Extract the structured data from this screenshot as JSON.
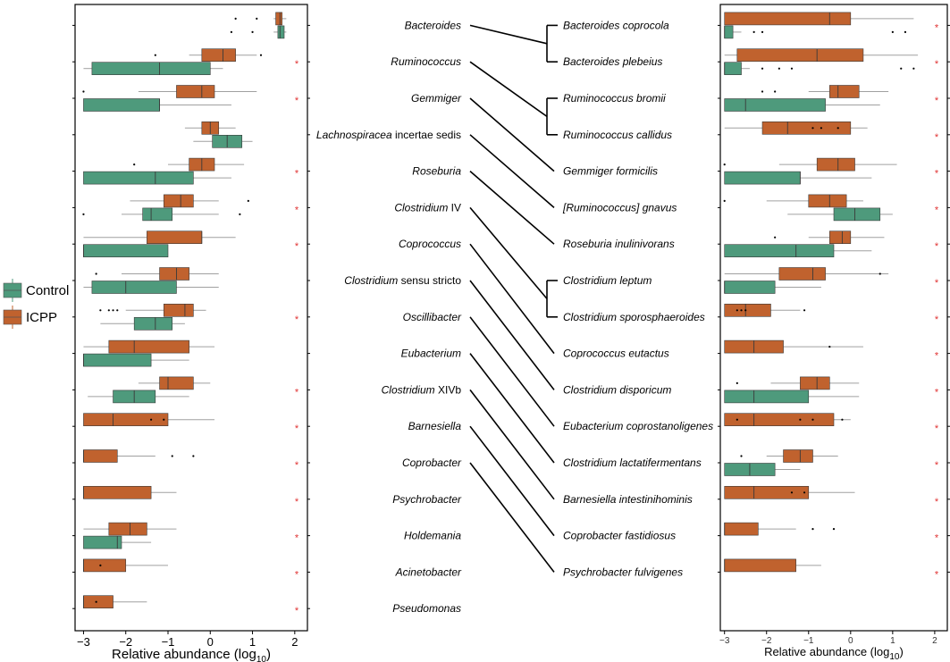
{
  "colors": {
    "control": "#4e9a7c",
    "icpp": "#c0622e",
    "star": "#e03030",
    "whisker": "#a0a0a0"
  },
  "legend": {
    "control_label": "Control",
    "icpp_label": "ICPP"
  },
  "chart_data": [
    {
      "type": "boxplot",
      "panel": "genus",
      "xlabel": "Relative abundance (log10)",
      "xlabel_main": "Relative abundance (log",
      "xlabel_sub": "10",
      "xlabel_close": ")",
      "xlim": [
        -3.2,
        2.3
      ],
      "xticks": [
        "-3",
        "-2",
        "-1",
        "0",
        "1",
        "2"
      ],
      "xtick_values": [
        -3,
        -2,
        -1,
        0,
        1,
        2
      ],
      "categories": [
        {
          "label": "Bacteroides",
          "italic": "Bacteroides",
          "rest": "",
          "sig": false,
          "icpp": {
            "wl": 1.5,
            "q1": 1.55,
            "med": 1.65,
            "q3": 1.7,
            "wh": 1.8,
            "out": [
              0.6,
              1.1
            ]
          },
          "control": {
            "wl": 1.5,
            "q1": 1.6,
            "med": 1.65,
            "q3": 1.75,
            "wh": 1.8,
            "out": [
              0.5,
              1.0
            ]
          }
        },
        {
          "label": "Ruminococcus",
          "italic": "Ruminococcus",
          "rest": "",
          "sig": true,
          "icpp": {
            "wl": -0.5,
            "q1": -0.2,
            "med": 0.3,
            "q3": 0.6,
            "wh": 1.1,
            "out": [
              -1.3,
              1.2
            ]
          },
          "control": {
            "wl": -3.0,
            "q1": -2.8,
            "med": -1.2,
            "q3": 0.0,
            "wh": 0.3,
            "out": []
          }
        },
        {
          "label": "Gemmiger",
          "italic": "Gemmiger",
          "rest": "",
          "sig": true,
          "icpp": {
            "wl": -1.7,
            "q1": -0.8,
            "med": -0.2,
            "q3": 0.1,
            "wh": 1.1,
            "out": [
              -3.0
            ]
          },
          "control": {
            "wl": -3.0,
            "q1": -3.0,
            "med": -1.2,
            "q3": -1.2,
            "wh": 0.5,
            "out": []
          }
        },
        {
          "label": "Lachnospiracea incertae sedis",
          "italic": "Lachnospiracea",
          "rest": " incertae sedis",
          "sig": false,
          "icpp": {
            "wl": -0.6,
            "q1": -0.2,
            "med": 0.0,
            "q3": 0.2,
            "wh": 0.6,
            "out": []
          },
          "control": {
            "wl": -0.4,
            "q1": 0.05,
            "med": 0.4,
            "q3": 0.75,
            "wh": 1.0,
            "out": []
          }
        },
        {
          "label": "Roseburia",
          "italic": "Roseburia",
          "rest": "",
          "sig": true,
          "icpp": {
            "wl": -1.0,
            "q1": -0.5,
            "med": -0.2,
            "q3": 0.1,
            "wh": 0.8,
            "out": [
              -1.8
            ]
          },
          "control": {
            "wl": -3.0,
            "q1": -3.0,
            "med": -1.3,
            "q3": -0.4,
            "wh": 0.5,
            "out": []
          }
        },
        {
          "label": "Clostridium IV",
          "italic": "Clostridium",
          "rest": " IV",
          "sig": true,
          "icpp": {
            "wl": -1.9,
            "q1": -1.1,
            "med": -0.7,
            "q3": -0.4,
            "wh": 0.2,
            "out": [
              0.9
            ]
          },
          "control": {
            "wl": -2.1,
            "q1": -1.6,
            "med": -1.4,
            "q3": -0.9,
            "wh": 0.2,
            "out": [
              -3.0,
              0.7
            ]
          }
        },
        {
          "label": "Coprococcus",
          "italic": "Coprococcus",
          "rest": "",
          "sig": true,
          "icpp": {
            "wl": -3.0,
            "q1": -1.5,
            "med": -0.2,
            "q3": -0.2,
            "wh": 0.6,
            "out": []
          },
          "control": {
            "wl": -3.0,
            "q1": -3.0,
            "med": -3.0,
            "q3": -1.0,
            "wh": -1.0,
            "out": []
          }
        },
        {
          "label": "Clostridium sensu stricto",
          "italic": "Clostridium",
          "rest": " sensu stricto",
          "sig": false,
          "icpp": {
            "wl": -2.1,
            "q1": -1.2,
            "med": -0.8,
            "q3": -0.5,
            "wh": 0.2,
            "out": [
              -2.7
            ]
          },
          "control": {
            "wl": -3.0,
            "q1": -2.8,
            "med": -2.0,
            "q3": -0.8,
            "wh": 0.2,
            "out": []
          }
        },
        {
          "label": "Oscillibacter",
          "italic": "Oscillibacter",
          "rest": "",
          "sig": true,
          "icpp": {
            "wl": -2.0,
            "q1": -1.1,
            "med": -0.6,
            "q3": -0.4,
            "wh": -0.1,
            "out": [
              -2.6,
              -2.4,
              -2.3,
              -2.2
            ]
          },
          "control": {
            "wl": -2.6,
            "q1": -1.8,
            "med": -1.3,
            "q3": -0.9,
            "wh": -0.6,
            "out": []
          }
        },
        {
          "label": "Eubacterium",
          "italic": "Eubacterium",
          "rest": "",
          "sig": false,
          "icpp": {
            "wl": -3.0,
            "q1": -2.4,
            "med": -1.8,
            "q3": -0.5,
            "wh": 0.1,
            "out": []
          },
          "control": {
            "wl": -3.0,
            "q1": -3.0,
            "med": -3.0,
            "q3": -1.4,
            "wh": -0.5,
            "out": []
          }
        },
        {
          "label": "Clostridium XIVb",
          "italic": "Clostridium",
          "rest": " XIVb",
          "sig": true,
          "icpp": {
            "wl": -1.7,
            "q1": -1.2,
            "med": -1.0,
            "q3": -0.4,
            "wh": 0.0,
            "out": []
          },
          "control": {
            "wl": -2.9,
            "q1": -2.3,
            "med": -1.8,
            "q3": -1.3,
            "wh": -0.5,
            "out": []
          }
        },
        {
          "label": "Barnesiella",
          "italic": "Barnesiella",
          "rest": "",
          "sig": true,
          "icpp": {
            "wl": -3.0,
            "q1": -3.0,
            "med": -2.3,
            "q3": -1.0,
            "wh": 0.1,
            "out": [
              -1.4,
              -1.1
            ]
          },
          "control": null
        },
        {
          "label": "Coprobacter",
          "italic": "Coprobacter",
          "rest": "",
          "sig": true,
          "icpp": {
            "wl": -3.0,
            "q1": -3.0,
            "med": -3.0,
            "q3": -2.2,
            "wh": -1.3,
            "out": [
              -0.9,
              -0.4
            ]
          },
          "control": null
        },
        {
          "label": "Psychrobacter",
          "italic": "Psychrobacter",
          "rest": "",
          "sig": true,
          "icpp": {
            "wl": -3.0,
            "q1": -3.0,
            "med": -3.0,
            "q3": -1.4,
            "wh": -0.8,
            "out": []
          },
          "control": null
        },
        {
          "label": "Holdemania",
          "italic": "Holdemania",
          "rest": "",
          "sig": true,
          "icpp": {
            "wl": -3.0,
            "q1": -2.4,
            "med": -1.9,
            "q3": -1.5,
            "wh": -0.8,
            "out": []
          },
          "control": {
            "wl": -3.0,
            "q1": -3.0,
            "med": -2.2,
            "q3": -2.1,
            "wh": -1.4,
            "out": []
          }
        },
        {
          "label": "Acinetobacter",
          "italic": "Acinetobacter",
          "rest": "",
          "sig": true,
          "icpp": {
            "wl": -3.0,
            "q1": -3.0,
            "med": -3.0,
            "q3": -2.0,
            "wh": -1.0,
            "out": [
              -2.6
            ]
          },
          "control": null
        },
        {
          "label": "Pseudomonas",
          "italic": "Pseudomonas",
          "rest": "",
          "sig": true,
          "icpp": {
            "wl": -3.0,
            "q1": -3.0,
            "med": -3.0,
            "q3": -2.3,
            "wh": -1.5,
            "out": [
              -2.7
            ]
          },
          "control": null
        }
      ]
    },
    {
      "type": "boxplot",
      "panel": "species",
      "xlabel": "Relative abundance (log10)",
      "xlabel_main": "Relative abundance (log",
      "xlabel_sub": "10",
      "xlabel_close": ")",
      "xlim": [
        -3.1,
        2.3
      ],
      "xticks": [
        "-3",
        "-2",
        "-1",
        "0",
        "1",
        "2"
      ],
      "xtick_values": [
        -3,
        -2,
        -1,
        0,
        1,
        2
      ],
      "categories": [
        {
          "label": "Bacteroides coprocola",
          "sig": true,
          "icpp": {
            "wl": -3.0,
            "q1": -3.0,
            "med": -0.5,
            "q3": 0.0,
            "wh": 1.5,
            "out": []
          },
          "control": {
            "wl": -3.0,
            "q1": -3.0,
            "med": -3.0,
            "q3": -2.8,
            "wh": -2.6,
            "out": [
              -2.3,
              -2.1,
              1.0,
              1.3
            ]
          }
        },
        {
          "label": "Bacteroides plebeius",
          "sig": true,
          "icpp": {
            "wl": -3.0,
            "q1": -2.7,
            "med": -0.8,
            "q3": 0.3,
            "wh": 1.6,
            "out": []
          },
          "control": {
            "wl": -3.0,
            "q1": -3.0,
            "med": -3.0,
            "q3": -2.6,
            "wh": -2.4,
            "out": [
              -2.1,
              -1.7,
              -1.4,
              1.2,
              1.5
            ]
          }
        },
        {
          "label": "Ruminococcus bromii",
          "sig": true,
          "icpp": {
            "wl": -1.0,
            "q1": -0.5,
            "med": -0.3,
            "q3": 0.2,
            "wh": 0.9,
            "out": [
              -2.1,
              -1.8
            ]
          },
          "control": {
            "wl": -3.0,
            "q1": -3.0,
            "med": -2.5,
            "q3": -0.6,
            "wh": 0.7,
            "out": []
          }
        },
        {
          "label": "Ruminococcus callidus",
          "sig": true,
          "icpp": {
            "wl": -3.0,
            "q1": -2.1,
            "med": -1.5,
            "q3": 0.0,
            "wh": 0.4,
            "out": [
              -0.9,
              -0.7,
              -0.3
            ]
          },
          "control": null
        },
        {
          "label": "Gemmiger formicilis",
          "sig": true,
          "icpp": {
            "wl": -1.7,
            "q1": -0.8,
            "med": -0.3,
            "q3": 0.1,
            "wh": 1.1,
            "out": [
              -3.0
            ]
          },
          "control": {
            "wl": -3.0,
            "q1": -3.0,
            "med": -1.2,
            "q3": -1.2,
            "wh": 0.5,
            "out": []
          }
        },
        {
          "label": "[Ruminococcus] gnavus",
          "sig": true,
          "icpp": {
            "wl": -2.0,
            "q1": -1.0,
            "med": -0.5,
            "q3": -0.1,
            "wh": 0.3,
            "out": [
              -3.0
            ]
          },
          "control": {
            "wl": -1.5,
            "q1": -0.4,
            "med": 0.1,
            "q3": 0.7,
            "wh": 1.0,
            "out": []
          }
        },
        {
          "label": "Roseburia inulinivorans",
          "sig": true,
          "icpp": {
            "wl": -1.0,
            "q1": -0.5,
            "med": -0.2,
            "q3": 0.0,
            "wh": 0.8,
            "out": [
              -1.8
            ]
          },
          "control": {
            "wl": -3.0,
            "q1": -3.0,
            "med": -1.3,
            "q3": -0.4,
            "wh": 0.5,
            "out": []
          }
        },
        {
          "label": "Clostridium leptum",
          "sig": true,
          "icpp": {
            "wl": -3.0,
            "q1": -1.7,
            "med": -0.9,
            "q3": -0.6,
            "wh": 0.9,
            "out": [
              0.7
            ]
          },
          "control": {
            "wl": -3.0,
            "q1": -3.0,
            "med": -3.0,
            "q3": -1.8,
            "wh": -0.7,
            "out": []
          }
        },
        {
          "label": "Clostridium sporosphaeroides",
          "sig": true,
          "icpp": {
            "wl": -3.0,
            "q1": -3.0,
            "med": -2.5,
            "q3": -1.9,
            "wh": -1.2,
            "out": [
              -2.7,
              -2.6,
              -2.5,
              -1.1
            ]
          },
          "control": null
        },
        {
          "label": "Coprococcus eutactus",
          "sig": true,
          "icpp": {
            "wl": -3.0,
            "q1": -3.0,
            "med": -2.3,
            "q3": -1.6,
            "wh": 0.3,
            "out": [
              -0.5
            ]
          },
          "control": null
        },
        {
          "label": "Clostridium disporicum",
          "sig": true,
          "icpp": {
            "wl": -1.9,
            "q1": -1.2,
            "med": -0.8,
            "q3": -0.5,
            "wh": 0.2,
            "out": [
              -2.7
            ]
          },
          "control": {
            "wl": -3.0,
            "q1": -3.0,
            "med": -2.3,
            "q3": -1.0,
            "wh": 0.2,
            "out": []
          }
        },
        {
          "label": "Eubacterium coprostanoligenes",
          "sig": true,
          "icpp": {
            "wl": -3.0,
            "q1": -3.0,
            "med": -2.3,
            "q3": -0.4,
            "wh": 0.0,
            "out": [
              -2.7,
              -1.2,
              -0.9,
              -0.2
            ]
          },
          "control": null
        },
        {
          "label": "Clostridium lactatifermentans",
          "sig": true,
          "icpp": {
            "wl": -2.0,
            "q1": -1.6,
            "med": -1.2,
            "q3": -0.9,
            "wh": -0.3,
            "out": [
              -2.6
            ]
          },
          "control": {
            "wl": -3.0,
            "q1": -3.0,
            "med": -2.4,
            "q3": -1.8,
            "wh": -1.2,
            "out": []
          }
        },
        {
          "label": "Barnesiella intestinihominis",
          "sig": true,
          "icpp": {
            "wl": -3.0,
            "q1": -3.0,
            "med": -2.3,
            "q3": -1.0,
            "wh": 0.1,
            "out": [
              -1.4,
              -1.1
            ]
          },
          "control": null
        },
        {
          "label": "Coprobacter fastidiosus",
          "sig": true,
          "icpp": {
            "wl": -3.0,
            "q1": -3.0,
            "med": -3.0,
            "q3": -2.2,
            "wh": -1.3,
            "out": [
              -0.9,
              -0.4
            ]
          },
          "control": null
        },
        {
          "label": "Psychrobacter fulvigenes",
          "sig": true,
          "icpp": {
            "wl": -3.0,
            "q1": -3.0,
            "med": -3.0,
            "q3": -1.3,
            "wh": -0.7,
            "out": []
          },
          "control": null
        }
      ]
    },
    {
      "type": "links",
      "panel": "genus-to-species",
      "links": [
        [
          0,
          0
        ],
        [
          0,
          1
        ],
        [
          1,
          2
        ],
        [
          1,
          3
        ],
        [
          2,
          4
        ],
        [
          3,
          5
        ],
        [
          4,
          6
        ],
        [
          5,
          7
        ],
        [
          5,
          8
        ],
        [
          6,
          9
        ],
        [
          7,
          10
        ],
        [
          8,
          11
        ],
        [
          9,
          12
        ],
        [
          10,
          13
        ],
        [
          11,
          14
        ],
        [
          12,
          15
        ]
      ]
    }
  ]
}
